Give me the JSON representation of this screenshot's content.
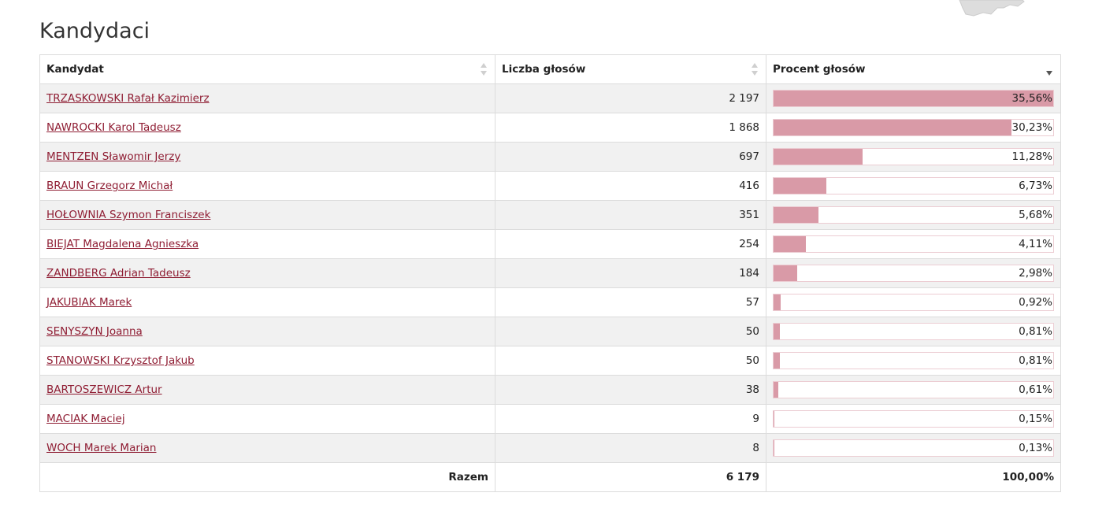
{
  "page": {
    "title": "Kandydaci"
  },
  "table": {
    "headers": {
      "candidate": "Kandydat",
      "votes": "Liczba głosów",
      "percent": "Procent głosów"
    },
    "rows": [
      {
        "name": "TRZASKOWSKI Rafał Kazimierz",
        "votes": "2 197",
        "percent": "35,56%",
        "share": 35.56
      },
      {
        "name": "NAWROCKI Karol Tadeusz",
        "votes": "1 868",
        "percent": "30,23%",
        "share": 30.23
      },
      {
        "name": "MENTZEN Sławomir Jerzy",
        "votes": "697",
        "percent": "11,28%",
        "share": 11.28
      },
      {
        "name": "BRAUN Grzegorz Michał",
        "votes": "416",
        "percent": "6,73%",
        "share": 6.73
      },
      {
        "name": "HOŁOWNIA Szymon Franciszek",
        "votes": "351",
        "percent": "5,68%",
        "share": 5.68
      },
      {
        "name": "BIEJAT Magdalena Agnieszka",
        "votes": "254",
        "percent": "4,11%",
        "share": 4.11
      },
      {
        "name": "ZANDBERG Adrian Tadeusz",
        "votes": "184",
        "percent": "2,98%",
        "share": 2.98
      },
      {
        "name": "JAKUBIAK Marek",
        "votes": "57",
        "percent": "0,92%",
        "share": 0.92
      },
      {
        "name": "SENYSZYN Joanna",
        "votes": "50",
        "percent": "0,81%",
        "share": 0.81
      },
      {
        "name": "STANOWSKI Krzysztof Jakub",
        "votes": "50",
        "percent": "0,81%",
        "share": 0.81
      },
      {
        "name": "BARTOSZEWICZ Artur",
        "votes": "38",
        "percent": "0,61%",
        "share": 0.61
      },
      {
        "name": "MACIAK Maciej",
        "votes": "9",
        "percent": "0,15%",
        "share": 0.15
      },
      {
        "name": "WOCH Marek Marian",
        "votes": "8",
        "percent": "0,13%",
        "share": 0.13
      }
    ],
    "footer": {
      "label": "Razem",
      "votes": "6 179",
      "percent": "100,00%"
    },
    "active_sort": "percent-desc"
  },
  "colors": {
    "link": "#8f1d33",
    "bar_fill": "#d99aa7",
    "bar_border": "#eccdd3",
    "stripe": "#f1f1f1"
  },
  "icons": {
    "map": "map-fragment-icon",
    "sort": "sort-arrows-icon"
  }
}
